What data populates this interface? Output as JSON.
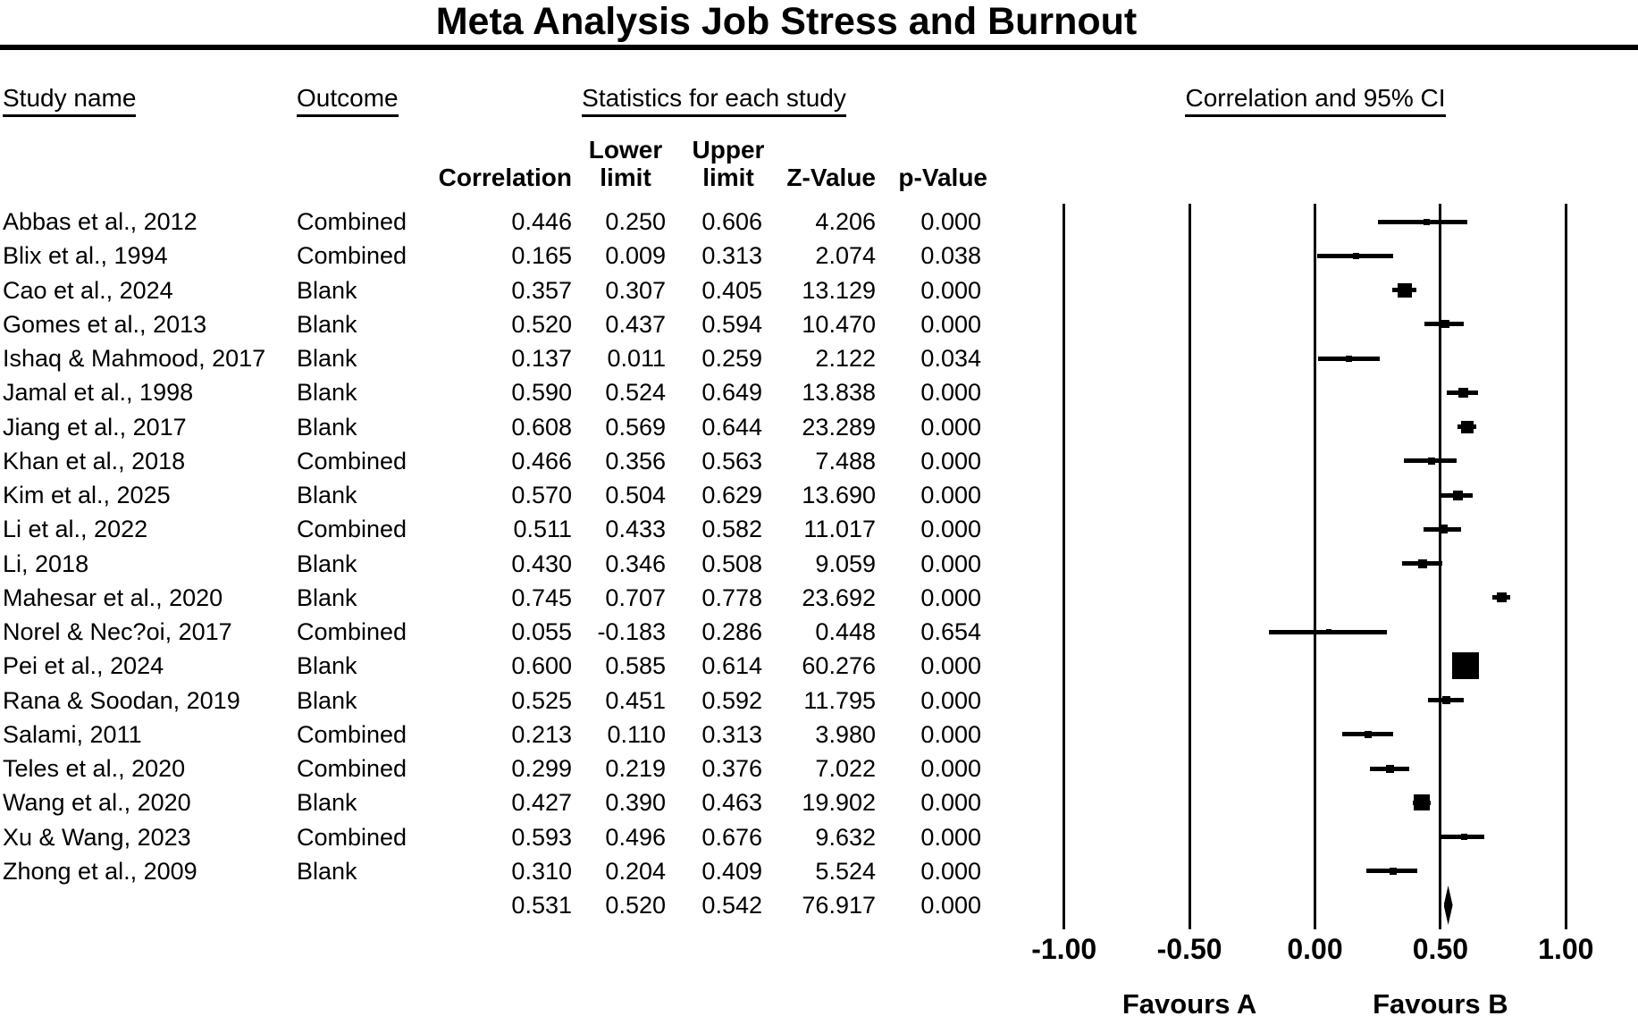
{
  "title": "Meta Analysis Job Stress and Burnout",
  "table": {
    "col_study": "Study name",
    "col_outcome": "Outcome",
    "col_stats": "Statistics for each study",
    "col_plot": "Correlation and 95% CI",
    "sub_lower": "Lower",
    "sub_upper": "Upper",
    "sub_correlation": "Correlation",
    "sub_limit_lower": "limit",
    "sub_limit_upper": "limit",
    "sub_z": "Z-Value",
    "sub_p": "p-Value"
  },
  "colors": {
    "ink": "#000000",
    "background": "#ffffff"
  },
  "chart_data": {
    "type": "forest",
    "title": "Correlation and 95% CI",
    "xlim": [
      -1,
      1
    ],
    "tick_values": [
      -1,
      -0.5,
      0,
      0.5,
      1
    ],
    "tick_labels": [
      "-1.00",
      "-0.50",
      "0.00",
      "0.50",
      "1.00"
    ],
    "favours_a": "Favours A",
    "favours_b": "Favours B",
    "grid": true,
    "studies": [
      {
        "name": "Abbas et al., 2012",
        "outcome": "Combined",
        "correlation": "0.446",
        "lower": "0.250",
        "upper": "0.606",
        "z": "4.206",
        "p": "0.000",
        "size": 7
      },
      {
        "name": "Blix et al., 1994",
        "outcome": "Combined",
        "correlation": "0.165",
        "lower": "0.009",
        "upper": "0.313",
        "z": "2.074",
        "p": "0.038",
        "size": 7
      },
      {
        "name": "Cao et al., 2024",
        "outcome": "Blank",
        "correlation": "0.357",
        "lower": "0.307",
        "upper": "0.405",
        "z": "13.129",
        "p": "0.000",
        "size": 16
      },
      {
        "name": "Gomes et al., 2013",
        "outcome": "Blank",
        "correlation": "0.520",
        "lower": "0.437",
        "upper": "0.594",
        "z": "10.470",
        "p": "0.000",
        "size": 9
      },
      {
        "name": "Ishaq & Mahmood, 2017",
        "outcome": "Blank",
        "correlation": "0.137",
        "lower": "0.011",
        "upper": "0.259",
        "z": "2.122",
        "p": "0.034",
        "size": 7
      },
      {
        "name": "Jamal et al., 1998",
        "outcome": "Blank",
        "correlation": "0.590",
        "lower": "0.524",
        "upper": "0.649",
        "z": "13.838",
        "p": "0.000",
        "size": 11
      },
      {
        "name": "Jiang et al., 2017",
        "outcome": "Blank",
        "correlation": "0.608",
        "lower": "0.569",
        "upper": "0.644",
        "z": "23.289",
        "p": "0.000",
        "size": 14
      },
      {
        "name": "Khan et al., 2018",
        "outcome": "Combined",
        "correlation": "0.466",
        "lower": "0.356",
        "upper": "0.563",
        "z": "7.488",
        "p": "0.000",
        "size": 8
      },
      {
        "name": "Kim et al., 2025",
        "outcome": "Blank",
        "correlation": "0.570",
        "lower": "0.504",
        "upper": "0.629",
        "z": "13.690",
        "p": "0.000",
        "size": 11
      },
      {
        "name": "Li et al., 2022",
        "outcome": "Combined",
        "correlation": "0.511",
        "lower": "0.433",
        "upper": "0.582",
        "z": "11.017",
        "p": "0.000",
        "size": 10
      },
      {
        "name": "Li, 2018",
        "outcome": "Blank",
        "correlation": "0.430",
        "lower": "0.346",
        "upper": "0.508",
        "z": "9.059",
        "p": "0.000",
        "size": 10
      },
      {
        "name": "Mahesar et al., 2020",
        "outcome": "Blank",
        "correlation": "0.745",
        "lower": "0.707",
        "upper": "0.778",
        "z": "23.692",
        "p": "0.000",
        "size": 11
      },
      {
        "name": "Norel & Nec?oi, 2017",
        "outcome": "Combined",
        "correlation": "0.055",
        "lower": "-0.183",
        "upper": "0.286",
        "z": "0.448",
        "p": "0.654",
        "size": 6
      },
      {
        "name": "Pei et al., 2024",
        "outcome": "Blank",
        "correlation": "0.600",
        "lower": "0.585",
        "upper": "0.614",
        "z": "60.276",
        "p": "0.000",
        "size": 30
      },
      {
        "name": "Rana & Soodan, 2019",
        "outcome": "Blank",
        "correlation": "0.525",
        "lower": "0.451",
        "upper": "0.592",
        "z": "11.795",
        "p": "0.000",
        "size": 9
      },
      {
        "name": "Salami, 2011",
        "outcome": "Combined",
        "correlation": "0.213",
        "lower": "0.110",
        "upper": "0.313",
        "z": "3.980",
        "p": "0.000",
        "size": 8
      },
      {
        "name": "Teles et al., 2020",
        "outcome": "Combined",
        "correlation": "0.299",
        "lower": "0.219",
        "upper": "0.376",
        "z": "7.022",
        "p": "0.000",
        "size": 9
      },
      {
        "name": "Wang et al., 2020",
        "outcome": "Blank",
        "correlation": "0.427",
        "lower": "0.390",
        "upper": "0.463",
        "z": "19.902",
        "p": "0.000",
        "size": 18
      },
      {
        "name": "Xu & Wang, 2023",
        "outcome": "Combined",
        "correlation": "0.593",
        "lower": "0.496",
        "upper": "0.676",
        "z": "9.632",
        "p": "0.000",
        "size": 7
      },
      {
        "name": "Zhong et al., 2009",
        "outcome": "Blank",
        "correlation": "0.310",
        "lower": "0.204",
        "upper": "0.409",
        "z": "5.524",
        "p": "0.000",
        "size": 8
      }
    ],
    "overall": {
      "correlation": "0.531",
      "lower": "0.520",
      "upper": "0.542",
      "z": "76.917",
      "p": "0.000"
    }
  }
}
